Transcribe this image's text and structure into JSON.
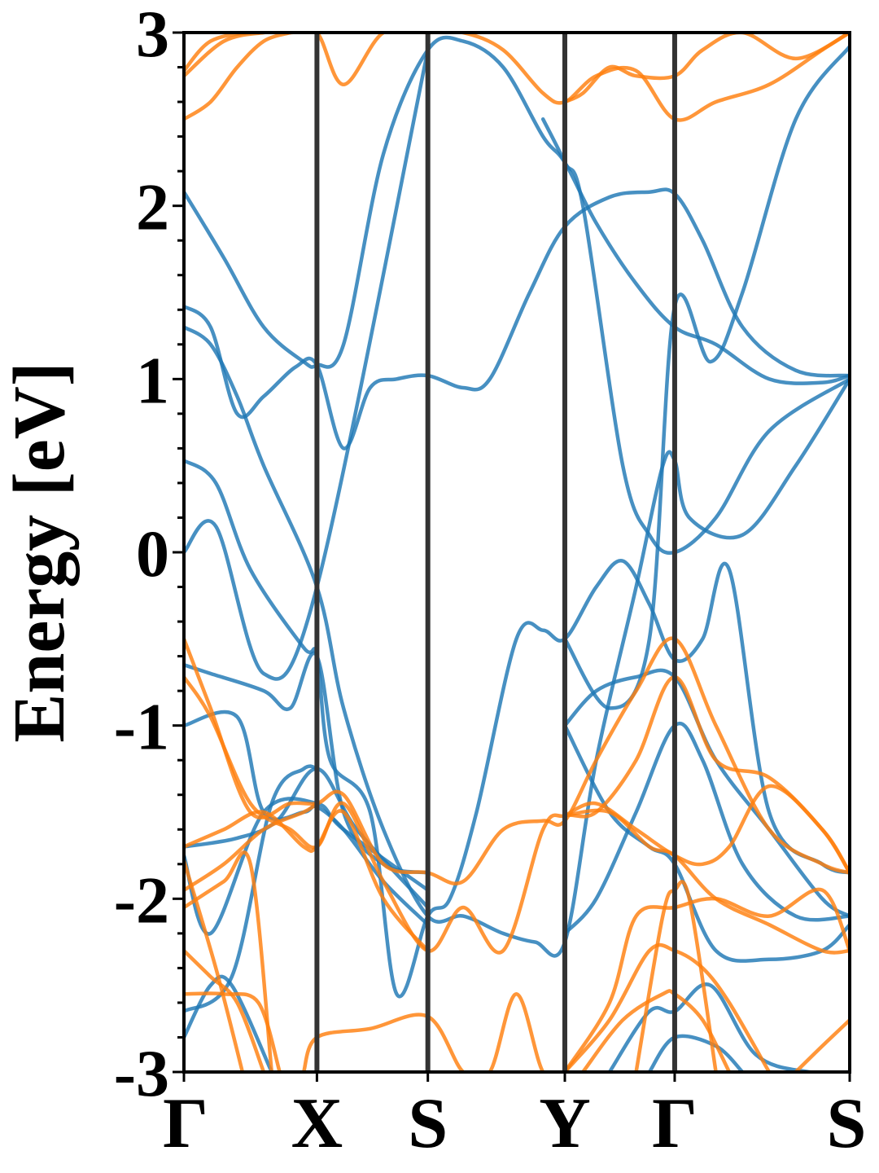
{
  "chart_data": {
    "type": "line",
    "ylabel": "Energy [eV]",
    "ylim": [
      -3,
      3
    ],
    "yticks": [
      -3,
      -2,
      -1,
      0,
      1,
      2,
      3
    ],
    "yticks_minor_step": 0.2,
    "kpoints": [
      {
        "label": "Γ",
        "x": 0
      },
      {
        "label": "X",
        "x": 0.5
      },
      {
        "label": "S",
        "x": 0.917
      },
      {
        "label": "Y",
        "x": 1.432
      },
      {
        "label": "Γ",
        "x": 1.845
      },
      {
        "label": "S",
        "x": 2.503
      }
    ],
    "xlim": [
      0,
      2.503
    ],
    "grid": false,
    "legend": "none",
    "colors": {
      "spin_up": "#1f77b4",
      "spin_down": "#ff7f0e"
    },
    "series": [
      {
        "spin": "up",
        "x": [
          0,
          0.15,
          0.3,
          0.45,
          0.5,
          0.6,
          0.75,
          0.917,
          1.05,
          1.2,
          1.35,
          1.432,
          1.55,
          1.7,
          1.845,
          2.0,
          2.2,
          2.4,
          2.503
        ],
        "y": [
          2.08,
          1.7,
          1.3,
          1.1,
          1.08,
          1.2,
          2.3,
          2.9,
          2.95,
          2.8,
          2.4,
          2.25,
          1.9,
          1.55,
          1.3,
          1.2,
          1.0,
          0.98,
          1.02
        ]
      },
      {
        "spin": "up",
        "x": [
          0,
          0.1,
          0.2,
          0.3,
          0.42,
          0.5,
          0.6,
          0.7,
          0.8,
          0.917,
          1.05,
          1.15,
          1.3,
          1.432,
          1.6,
          1.75,
          1.845,
          1.95,
          2.1,
          2.3,
          2.503
        ],
        "y": [
          1.42,
          1.3,
          0.8,
          0.9,
          1.07,
          1.08,
          0.6,
          0.95,
          1.0,
          1.02,
          0.95,
          1.0,
          1.5,
          1.88,
          2.05,
          2.08,
          2.07,
          1.8,
          1.3,
          1.05,
          1.02
        ]
      },
      {
        "spin": "up",
        "x": [
          0,
          0.1,
          0.2,
          0.3,
          0.5,
          0.6,
          0.75,
          0.917,
          1.05,
          1.2,
          1.32,
          1.432,
          1.55,
          1.7,
          1.8,
          1.845,
          1.9,
          2.1,
          2.3,
          2.503
        ],
        "y": [
          1.3,
          1.2,
          0.9,
          0.5,
          -0.2,
          -0.9,
          -1.6,
          -2.1,
          -2.1,
          -2.2,
          -2.25,
          -2.25,
          -1.2,
          -0.2,
          0.5,
          0.53,
          0.2,
          0.1,
          0.5,
          1.0
        ]
      },
      {
        "spin": "up",
        "x": [
          0,
          0.12,
          0.25,
          0.45,
          0.5,
          0.55,
          0.7,
          0.8,
          0.917,
          1.0,
          1.1,
          1.25,
          1.35,
          1.432,
          1.55,
          1.65,
          1.75,
          1.845,
          1.95,
          2.05,
          2.2,
          2.4,
          2.503
        ],
        "y": [
          0.53,
          0.4,
          -0.1,
          -0.55,
          -0.6,
          -1.2,
          -1.5,
          -2.55,
          -2.1,
          -2.0,
          -1.5,
          -0.5,
          -0.45,
          -0.5,
          -0.2,
          -0.05,
          -0.3,
          -0.62,
          -0.5,
          -0.1,
          -1.5,
          -1.8,
          -1.85
        ]
      },
      {
        "spin": "up",
        "x": [
          0,
          0.12,
          0.3,
          0.5,
          0.917
        ],
        "y": [
          0.0,
          0.15,
          -0.7,
          -0.2,
          2.9
        ]
      },
      {
        "spin": "up",
        "x": [
          0,
          0.1,
          0.3,
          0.4,
          0.5,
          0.6,
          0.75,
          0.917
        ],
        "y": [
          -0.65,
          -0.7,
          -0.8,
          -0.9,
          -0.6,
          -1.5,
          -1.8,
          -1.85
        ]
      },
      {
        "spin": "up",
        "x": [
          0,
          0.2,
          0.3,
          0.45,
          0.5,
          0.6,
          0.75,
          0.917
        ],
        "y": [
          -1.0,
          -0.95,
          -1.5,
          -1.5,
          -1.47,
          -1.6,
          -1.9,
          -2.15
        ]
      },
      {
        "spin": "up",
        "x": [
          0,
          0.2,
          0.35,
          0.5,
          0.65,
          0.917
        ],
        "y": [
          -1.7,
          -1.65,
          -1.55,
          -1.25,
          -1.6,
          -2.05
        ]
      },
      {
        "spin": "up",
        "x": [
          0,
          0.1,
          0.3,
          0.5,
          0.6,
          0.917
        ],
        "y": [
          -1.75,
          -2.2,
          -1.5,
          -1.45,
          -1.6,
          -1.95
        ]
      },
      {
        "spin": "up",
        "x": [
          0,
          0.1,
          0.18,
          0.33
        ],
        "y": [
          -2.8,
          -2.5,
          -2.5,
          -3.0
        ]
      },
      {
        "spin": "up",
        "x": [
          0,
          0.18,
          0.33,
          0.45,
          0.5
        ],
        "y": [
          -2.65,
          -2.45,
          -1.45,
          -1.25,
          -1.25
        ]
      },
      {
        "spin": "up",
        "x": [
          1.432,
          1.55,
          1.7,
          1.845,
          2.0,
          2.2,
          2.4,
          2.503
        ],
        "y": [
          -1.0,
          -0.8,
          -0.72,
          -0.72,
          -1.2,
          -1.6,
          -2.0,
          -2.1
        ]
      },
      {
        "spin": "up",
        "x": [
          1.432,
          1.6,
          1.75,
          1.845,
          2.0,
          2.2,
          2.4,
          2.503
        ],
        "y": [
          -1.0,
          -1.5,
          -1.7,
          -1.8,
          -2.3,
          -2.35,
          -2.3,
          -2.15
        ]
      },
      {
        "spin": "up",
        "x": [
          1.432,
          1.55,
          1.7,
          1.845,
          1.95,
          2.1,
          2.3,
          2.503
        ],
        "y": [
          -2.2,
          -2.0,
          -1.5,
          -1.0,
          -1.2,
          -1.8,
          -2.1,
          -2.1
        ]
      },
      {
        "spin": "up",
        "x": [
          1.432,
          1.6,
          1.75,
          1.845,
          1.98,
          2.1,
          2.3,
          2.503
        ],
        "y": [
          -0.5,
          -0.9,
          -0.5,
          1.42,
          1.1,
          1.5,
          2.5,
          2.92
        ]
      },
      {
        "spin": "up",
        "x": [
          1.35,
          1.432,
          1.5,
          1.65,
          1.75,
          1.845,
          2.0,
          2.2,
          2.503
        ],
        "y": [
          2.5,
          2.25,
          2.0,
          0.5,
          0.1,
          0.0,
          0.2,
          0.7,
          1.0
        ]
      },
      {
        "spin": "up",
        "x": [
          1.6,
          1.75,
          1.845,
          1.98,
          2.15,
          2.35,
          2.503
        ],
        "y": [
          -3.0,
          -2.65,
          -2.65,
          -2.5,
          -2.9,
          -3.0,
          -3.0
        ]
      },
      {
        "spin": "up",
        "x": [
          1.75,
          1.845,
          2.0,
          2.1
        ],
        "y": [
          -3.0,
          -2.8,
          -2.85,
          -3.0
        ]
      },
      {
        "spin": "down",
        "x": [
          0,
          0.1,
          0.25,
          0.4,
          0.5,
          0.6,
          0.75,
          0.917,
          1.05,
          1.2,
          1.35,
          1.432,
          1.55,
          1.7,
          1.845,
          2.0,
          2.2,
          2.4,
          2.503
        ],
        "y": [
          2.78,
          2.95,
          3.0,
          3.0,
          3.0,
          2.7,
          3.0,
          3.0,
          3.0,
          2.9,
          2.65,
          2.6,
          2.75,
          2.78,
          2.5,
          2.6,
          2.7,
          2.9,
          3.0
        ]
      },
      {
        "spin": "down",
        "x": [
          0,
          0.1,
          0.2,
          0.3,
          0.4
        ],
        "y": [
          2.5,
          2.6,
          2.8,
          2.95,
          3.0
        ]
      },
      {
        "spin": "down",
        "x": [
          0,
          0.15,
          0.3,
          0.4
        ],
        "y": [
          2.75,
          2.95,
          3.0,
          3.0
        ]
      },
      {
        "spin": "down",
        "x": [
          1.432,
          1.5,
          1.6,
          1.7,
          1.845,
          1.95,
          2.1,
          2.3,
          2.503
        ],
        "y": [
          2.6,
          2.65,
          2.8,
          2.75,
          2.75,
          2.9,
          3.0,
          2.85,
          3.0
        ]
      },
      {
        "spin": "down",
        "x": [
          0,
          0.1,
          0.25,
          0.4,
          0.5,
          0.6,
          0.75,
          0.917,
          1.05,
          1.2,
          1.35,
          1.432,
          1.55,
          1.7,
          1.845,
          2.0,
          2.2,
          2.4,
          2.503
        ],
        "y": [
          -0.5,
          -0.9,
          -1.5,
          -1.45,
          -1.45,
          -1.4,
          -1.8,
          -1.85,
          -1.9,
          -1.6,
          -1.55,
          -1.55,
          -1.2,
          -0.8,
          -0.5,
          -1.0,
          -1.6,
          -1.8,
          -1.85
        ]
      },
      {
        "spin": "down",
        "x": [
          0,
          0.1,
          0.25,
          0.4,
          0.5,
          0.6,
          0.75,
          0.917,
          1.05,
          1.2,
          1.35,
          1.432,
          1.55,
          1.7,
          1.845,
          2.0,
          2.2,
          2.4,
          2.503
        ],
        "y": [
          -0.72,
          -0.95,
          -1.45,
          -1.6,
          -1.7,
          -1.45,
          -1.9,
          -2.3,
          -2.05,
          -2.3,
          -1.6,
          -1.52,
          -1.5,
          -1.2,
          -0.72,
          -1.2,
          -1.3,
          -1.6,
          -1.85
        ]
      },
      {
        "spin": "down",
        "x": [
          0,
          0.15,
          0.3,
          0.45,
          0.5,
          0.6,
          0.75,
          0.917
        ],
        "y": [
          -1.7,
          -1.6,
          -1.5,
          -1.7,
          -1.7,
          -1.5,
          -2.0,
          -2.3
        ]
      },
      {
        "spin": "down",
        "x": [
          0,
          0.15,
          0.3,
          0.45,
          0.5
        ],
        "y": [
          -1.95,
          -1.8,
          -1.6,
          -1.5,
          -1.45
        ]
      },
      {
        "spin": "down",
        "x": [
          0,
          0.15,
          0.25,
          0.33
        ],
        "y": [
          -2.05,
          -1.9,
          -1.8,
          -3.0
        ]
      },
      {
        "spin": "down",
        "x": [
          0,
          0.12,
          0.22
        ],
        "y": [
          -1.78,
          -2.4,
          -3.0
        ]
      },
      {
        "spin": "down",
        "x": [
          0,
          0.1,
          0.2,
          0.3
        ],
        "y": [
          -2.3,
          -2.45,
          -2.6,
          -3.0
        ]
      },
      {
        "spin": "down",
        "x": [
          0,
          0.15,
          0.28,
          0.36
        ],
        "y": [
          -2.55,
          -2.55,
          -2.6,
          -3.0
        ]
      },
      {
        "spin": "down",
        "x": [
          0.45,
          0.5,
          0.7,
          0.917,
          1.05,
          1.15,
          1.25,
          1.35,
          1.432
        ],
        "y": [
          -3.0,
          -2.8,
          -2.75,
          -2.68,
          -3.0,
          -3.0,
          -2.55,
          -3.0,
          -3.0
        ]
      },
      {
        "spin": "down",
        "x": [
          1.432,
          1.6,
          1.75,
          1.845,
          2.0,
          2.2,
          2.4,
          2.503
        ],
        "y": [
          -1.52,
          -1.5,
          -1.7,
          -1.75,
          -2.0,
          -2.15,
          -2.3,
          -2.3
        ]
      },
      {
        "spin": "down",
        "x": [
          1.432,
          1.55,
          1.7,
          1.845,
          1.95,
          2.05,
          2.2,
          2.4,
          2.503
        ],
        "y": [
          -1.52,
          -1.45,
          -1.6,
          -1.75,
          -1.8,
          -1.7,
          -1.35,
          -1.6,
          -1.85
        ]
      },
      {
        "spin": "down",
        "x": [
          1.432,
          1.6,
          1.7,
          1.845,
          2.0,
          2.2,
          2.4,
          2.503
        ],
        "y": [
          -3.0,
          -2.6,
          -2.1,
          -2.05,
          -2.0,
          -2.1,
          -1.95,
          -2.3
        ]
      },
      {
        "spin": "down",
        "x": [
          1.432,
          1.6,
          1.75,
          1.845,
          1.95,
          2.05,
          2.2
        ],
        "y": [
          -3.0,
          -2.7,
          -2.3,
          -2.3,
          -2.4,
          -2.6,
          -3.0
        ]
      },
      {
        "spin": "down",
        "x": [
          1.5,
          1.65,
          1.8,
          1.845,
          1.95,
          2.05
        ],
        "y": [
          -3.0,
          -2.7,
          -2.55,
          -2.55,
          -2.7,
          -3.0
        ]
      },
      {
        "spin": "down",
        "x": [
          1.7,
          1.8,
          1.845,
          1.9,
          2.0
        ],
        "y": [
          -3.0,
          -2.1,
          -1.95,
          -2.0,
          -3.0
        ]
      },
      {
        "spin": "down",
        "x": [
          2.3,
          2.4,
          2.503
        ],
        "y": [
          -3.0,
          -2.85,
          -2.7
        ]
      }
    ]
  }
}
